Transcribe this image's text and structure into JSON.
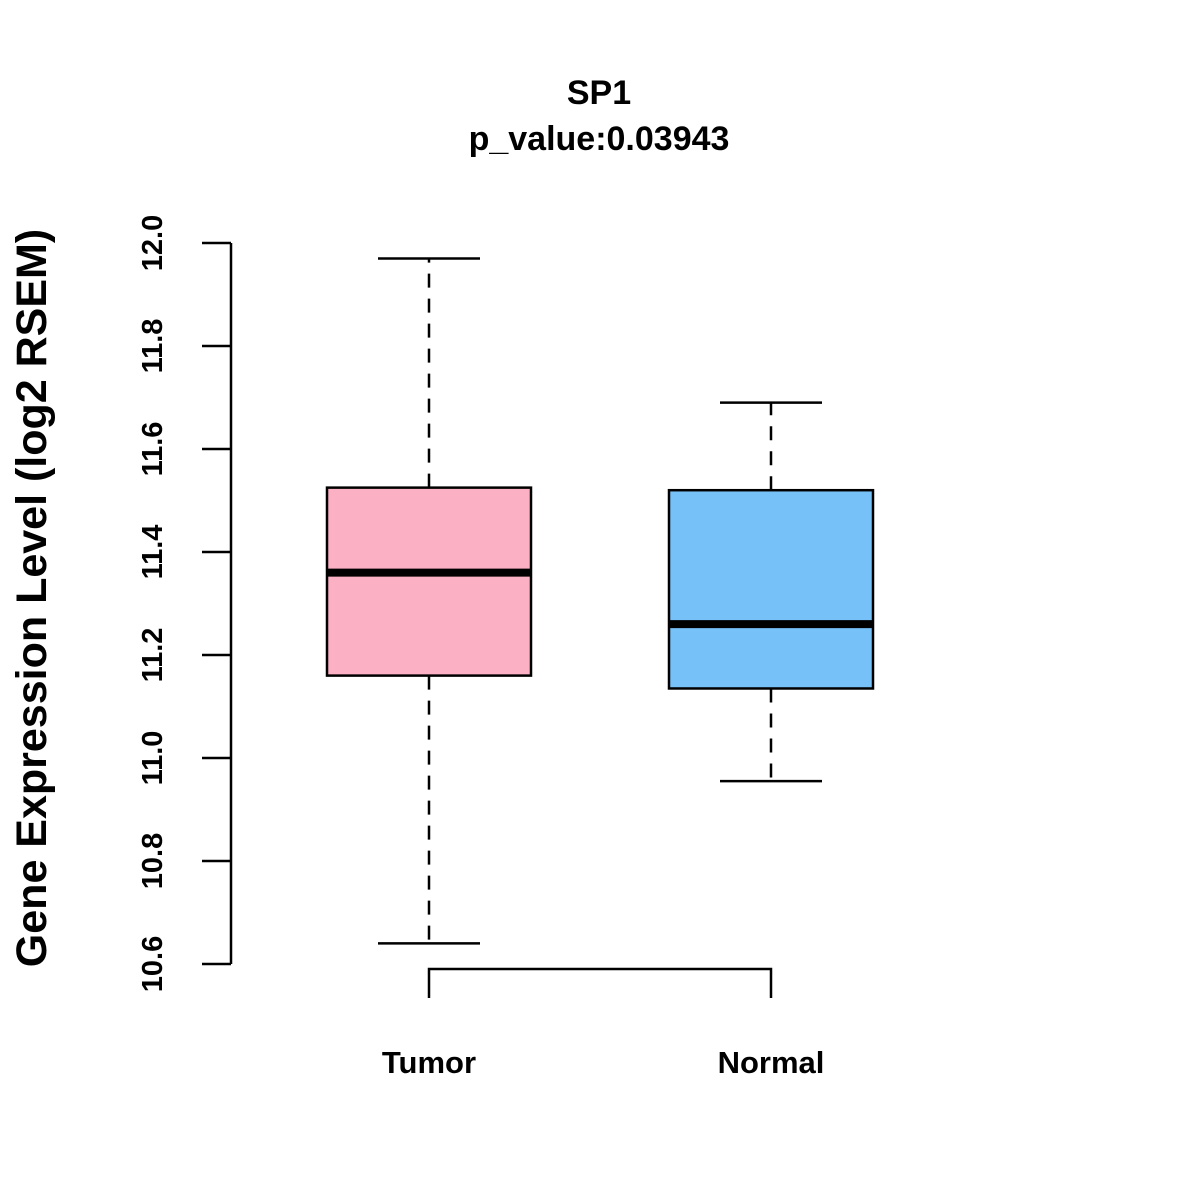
{
  "chart_data": {
    "type": "boxplot",
    "title": "SP1",
    "subtitle": "p_value:0.03943",
    "xlabel": "",
    "ylabel": "Gene Expression Level (log2 RSEM)",
    "ylim": [
      10.6,
      12.0
    ],
    "yticks": [
      "10.6",
      "10.8",
      "11.0",
      "11.2",
      "11.4",
      "11.6",
      "11.8",
      "12.0"
    ],
    "groups": [
      {
        "name": "Tumor",
        "color": "#FBB1C3",
        "whisker_low": 10.64,
        "q1": 11.16,
        "median": 11.36,
        "q3": 11.525,
        "whisker_high": 11.97
      },
      {
        "name": "Normal",
        "color": "#77C1F9",
        "whisker_low": 10.955,
        "q1": 11.135,
        "median": 11.26,
        "q3": 11.52,
        "whisker_high": 11.69
      }
    ],
    "comparison_bracket": [
      "Tumor",
      "Normal"
    ]
  }
}
